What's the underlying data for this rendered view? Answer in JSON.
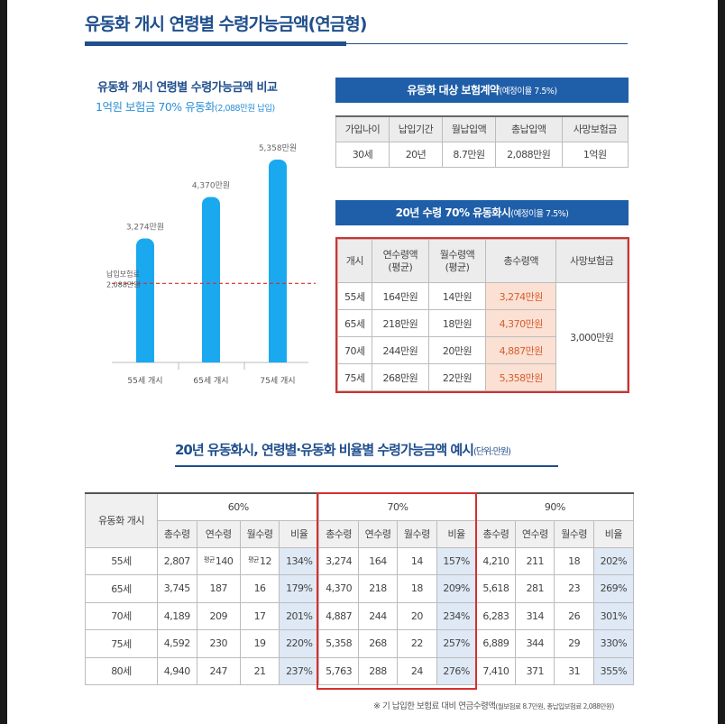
{
  "header": {
    "title": "유동화 개시 연령별 수령가능금액(연금형)"
  },
  "chart": {
    "title_line1": "유동화 개시 연령별 수령가능금액 비교",
    "title_line2_main": "1억원 보험금 70% 유동화",
    "title_line2_small": "(2,088만원 납입)",
    "ref_label_1": "납입보험료",
    "ref_label_2": "2,088만원",
    "bar_color": "#1aa9ef",
    "ref_line_color": "#d62f2f"
  },
  "chart_data": {
    "type": "bar",
    "categories": [
      "55세 개시",
      "65세 개시",
      "75세 개시"
    ],
    "values": [
      3274,
      4370,
      5358
    ],
    "value_labels": [
      "3,274만원",
      "4,370만원",
      "5,358만원"
    ],
    "reference_line": 2088,
    "ylim": [
      0,
      6000
    ]
  },
  "contract": {
    "title_main": "유동화 대상 보험계약",
    "title_small": "(예정이율 7.5%)",
    "headers": [
      "가입나이",
      "납입기간",
      "월납입액",
      "총납입액",
      "사망보험금"
    ],
    "row": [
      "30세",
      "20년",
      "8.7만원",
      "2,088만원",
      "1억원"
    ]
  },
  "payout": {
    "title_main": "20년 수령 70% 유동화시",
    "title_small": "(예정이율 7.5%)",
    "headers": [
      "개시",
      "연수령액\n(평균)",
      "월수령액\n(평균)",
      "총수령액",
      "사망보험금"
    ],
    "rows": [
      [
        "55세",
        "164만원",
        "14만원",
        "3,274만원"
      ],
      [
        "65세",
        "218만원",
        "18만원",
        "4,370만원"
      ],
      [
        "70세",
        "244만원",
        "20만원",
        "4,887만원"
      ],
      [
        "75세",
        "268만원",
        "22만원",
        "5,358만원"
      ]
    ],
    "death_benefit": "3,000만원"
  },
  "ratio_table": {
    "title_main": "20년 유동화시, 연령별·유동화 비율별 수령가능금액 예시",
    "title_small": "(단위:만원)",
    "row_header": "유동화 개시",
    "groups": [
      "60%",
      "70%",
      "90%"
    ],
    "sub_headers": [
      "총수령",
      "연수령",
      "월수령",
      "비율"
    ],
    "avg_label": "평균",
    "rows": [
      {
        "age": "55세",
        "v": [
          "2,807",
          "140",
          "12",
          "134%",
          "3,274",
          "164",
          "14",
          "157%",
          "4,210",
          "211",
          "18",
          "202%"
        ]
      },
      {
        "age": "65세",
        "v": [
          "3,745",
          "187",
          "16",
          "179%",
          "4,370",
          "218",
          "18",
          "209%",
          "5,618",
          "281",
          "23",
          "269%"
        ]
      },
      {
        "age": "70세",
        "v": [
          "4,189",
          "209",
          "17",
          "201%",
          "4,887",
          "244",
          "20",
          "234%",
          "6,283",
          "314",
          "26",
          "301%"
        ]
      },
      {
        "age": "75세",
        "v": [
          "4,592",
          "230",
          "19",
          "220%",
          "5,358",
          "268",
          "22",
          "257%",
          "6,889",
          "344",
          "29",
          "330%"
        ]
      },
      {
        "age": "80세",
        "v": [
          "4,940",
          "247",
          "21",
          "237%",
          "5,763",
          "288",
          "24",
          "276%",
          "7,410",
          "371",
          "31",
          "355%"
        ]
      }
    ],
    "note_main": "※ 기 납입한 보험료 대비 연금수령액",
    "note_small": "(월보험료 8.7만원, 총납입보험료 2,088만원)"
  }
}
